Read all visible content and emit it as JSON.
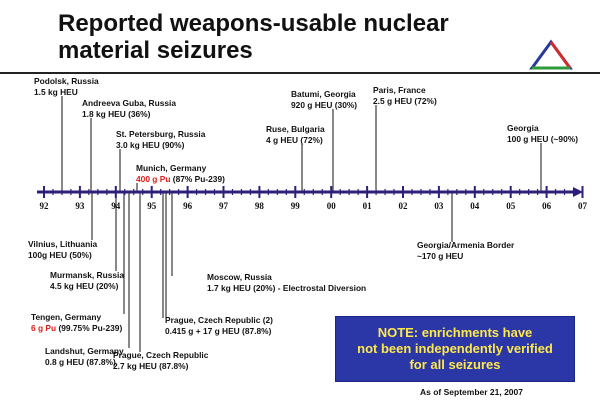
{
  "title_line1": "Reported weapons-usable nuclear",
  "title_line2": "material seizures",
  "logo": {
    "colors": [
      "#2a3a9c",
      "#d42b2b",
      "#2f9a3a"
    ],
    "icon": "triangle-logo"
  },
  "timeline": {
    "labels": [
      "92",
      "93",
      "94",
      "95",
      "96",
      "97",
      "98",
      "99",
      "00",
      "01",
      "02",
      "03",
      "04",
      "05",
      "06",
      "07"
    ]
  },
  "events": [
    {
      "line1": "Podolsk, Russia",
      "line2": "1.5 kg HEU",
      "highlight": "",
      "rest": ""
    },
    {
      "line1": "Andreeva Guba, Russia",
      "line2": "1.8 kg HEU (36%)",
      "highlight": "",
      "rest": ""
    },
    {
      "line1": "St. Petersburg, Russia",
      "line2": "3.0 kg HEU (90%)",
      "highlight": "",
      "rest": ""
    },
    {
      "line1": "Munich, Germany",
      "line2": "",
      "highlight": "400 g Pu",
      "rest": " (87% Pu-239)"
    },
    {
      "line1": "Ruse, Bulgaria",
      "line2": "4 g HEU (72%)",
      "highlight": "",
      "rest": ""
    },
    {
      "line1": "Batumi, Georgia",
      "line2": "920 g HEU (30%)",
      "highlight": "",
      "rest": ""
    },
    {
      "line1": "Paris, France",
      "line2": "2.5 g HEU (72%)",
      "highlight": "",
      "rest": ""
    },
    {
      "line1": "Georgia",
      "line2": "100 g HEU (~90%)",
      "highlight": "",
      "rest": ""
    },
    {
      "line1": "Vilnius, Lithuania",
      "line2": "100g HEU (50%)",
      "highlight": "",
      "rest": ""
    },
    {
      "line1": "Murmansk, Russia",
      "line2": "4.5 kg HEU (20%)",
      "highlight": "",
      "rest": ""
    },
    {
      "line1": "Tengen, Germany",
      "line2": "",
      "highlight": "6 g Pu",
      "rest": " (99.75% Pu-239)"
    },
    {
      "line1": "Landshut, Germany",
      "line2": "0.8 g HEU (87.8%)",
      "highlight": "",
      "rest": ""
    },
    {
      "line1": "Prague, Czech Republic",
      "line2": "2.7 kg HEU (87.8%)",
      "highlight": "",
      "rest": ""
    },
    {
      "line1": "Prague, Czech Republic (2)",
      "line2": "0.415 g + 17 g HEU (87.8%)",
      "highlight": "",
      "rest": ""
    },
    {
      "line1": "Moscow, Russia",
      "line2": "1.7 kg HEU (20%) - Electrostal Diversion",
      "highlight": "",
      "rest": ""
    },
    {
      "line1": "Georgia/Armenia Border",
      "line2": "~170 g HEU",
      "highlight": "",
      "rest": ""
    }
  ],
  "note": {
    "line1": "NOTE: enrichments have",
    "line2": "not been independently verified",
    "line3": "for all seizures"
  },
  "as_of": "As of September 21, 2007",
  "colors": {
    "timeline": "#2e1f7a",
    "highlight": "#e0201b",
    "note_bg": "#2b37a6",
    "note_text": "#ffe84a"
  }
}
